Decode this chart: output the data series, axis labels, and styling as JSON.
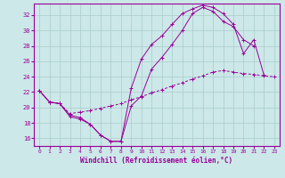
{
  "xlabel": "Windchill (Refroidissement éolien,°C)",
  "bg_color": "#cce8e8",
  "grid_color": "#aacccc",
  "line_color": "#990099",
  "xlim": [
    -0.5,
    23.5
  ],
  "ylim": [
    15.0,
    33.5
  ],
  "yticks": [
    16,
    18,
    20,
    22,
    24,
    26,
    28,
    30,
    32
  ],
  "xticks": [
    0,
    1,
    2,
    3,
    4,
    5,
    6,
    7,
    8,
    9,
    10,
    11,
    12,
    13,
    14,
    15,
    16,
    17,
    18,
    19,
    20,
    21,
    22,
    23
  ],
  "curve1_x": [
    0,
    1,
    2,
    3,
    4,
    5,
    6,
    7,
    8,
    9,
    10,
    11,
    12,
    13,
    14,
    15,
    16,
    17,
    18,
    19,
    20,
    21,
    22
  ],
  "curve1_y": [
    22.2,
    20.7,
    20.5,
    18.8,
    18.5,
    17.8,
    16.4,
    15.6,
    15.6,
    22.5,
    26.3,
    28.2,
    29.3,
    30.8,
    32.2,
    32.8,
    33.3,
    33.0,
    32.2,
    30.8,
    27.0,
    28.8,
    24.2
  ],
  "curve2_x": [
    0,
    1,
    2,
    3,
    4,
    5,
    6,
    7,
    8,
    9,
    10,
    11,
    12,
    13,
    14,
    15,
    16,
    17,
    18,
    19,
    20,
    21,
    22,
    23
  ],
  "curve2_y": [
    22.2,
    20.7,
    20.5,
    19.2,
    19.4,
    19.6,
    19.9,
    20.2,
    20.5,
    21.0,
    21.4,
    21.9,
    22.3,
    22.8,
    23.2,
    23.7,
    24.1,
    24.6,
    24.8,
    24.6,
    24.4,
    24.3,
    24.1,
    24.0
  ],
  "curve3_x": [
    0,
    1,
    2,
    3,
    4,
    5,
    6,
    7,
    8,
    9,
    10,
    11,
    12,
    13,
    14,
    15,
    16,
    17,
    18,
    19,
    20,
    21
  ],
  "curve3_y": [
    22.2,
    20.7,
    20.5,
    19.0,
    18.7,
    17.8,
    16.4,
    15.6,
    15.6,
    20.2,
    21.5,
    25.0,
    26.5,
    28.2,
    30.0,
    32.2,
    33.0,
    32.5,
    31.2,
    30.5,
    28.8,
    28.0
  ]
}
